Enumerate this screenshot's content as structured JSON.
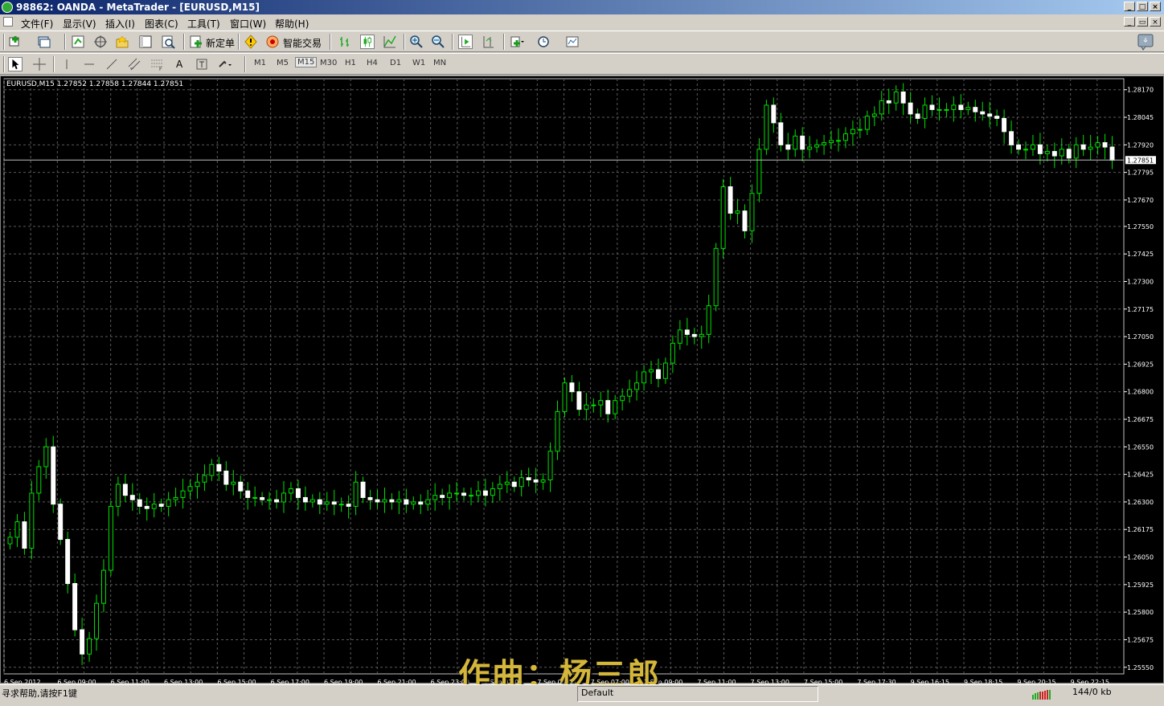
{
  "window": {
    "title": "98862: OANDA - MetaTrader - [EURUSD,M15]",
    "buttons": [
      "_",
      "□",
      "×"
    ],
    "mdi_buttons": [
      "_",
      "▭",
      "×"
    ]
  },
  "menu": [
    "文件(F)",
    "显示(V)",
    "插入(I)",
    "图表(C)",
    "工具(T)",
    "窗口(W)",
    "帮助(H)"
  ],
  "toolbar": {
    "new_order_label": "新定单",
    "smart_trade_label": "智能交易"
  },
  "timeframes": [
    "M1",
    "M5",
    "M15",
    "M30",
    "H1",
    "H4",
    "D1",
    "W1",
    "MN"
  ],
  "selected_timeframe": "M15",
  "chart_header": {
    "symbol": "EURUSD,M15",
    "ohlc": "1.27852 1.27858 1.27844 1.27851"
  },
  "chart_data": {
    "type": "candlestick",
    "symbol": "EURUSD",
    "timeframe": "M15",
    "y_ticks": [
      "1.28170",
      "1.28045",
      "1.27920",
      "1.27795",
      "1.27670",
      "1.27550",
      "1.27425",
      "1.27300",
      "1.27175",
      "1.27050",
      "1.26925",
      "1.26800",
      "1.26675",
      "1.26550",
      "1.26425",
      "1.26300",
      "1.26175",
      "1.26050",
      "1.25925",
      "1.25800",
      "1.25675",
      "1.25550"
    ],
    "ylim": [
      1.2552,
      1.2822
    ],
    "current_price": "1.27851",
    "x_ticks": [
      "6 Sep 2012",
      "6 Sep 09:00",
      "6 Sep 11:00",
      "6 Sep 13:00",
      "6 Sep 15:00",
      "6 Sep 17:00",
      "6 Sep 19:00",
      "6 Sep 21:00",
      "6 Sep 23:00",
      "7 Sep 01:00",
      "7 Sep 03:00",
      "7 Sep 07:00",
      "7 Sep 09:00",
      "7 Sep 11:00",
      "7 Sep 13:00",
      "7 Sep 15:00",
      "7 Sep 17:30",
      "9 Sep 16:15",
      "9 Sep 18:15",
      "9 Sep 20:15",
      "9 Sep 22:15"
    ],
    "closes": [
      1.2614,
      1.2621,
      1.2609,
      1.2634,
      1.2646,
      1.2655,
      1.2629,
      1.2613,
      1.2593,
      1.2572,
      1.2561,
      1.2568,
      1.2584,
      1.2599,
      1.2628,
      1.2638,
      1.2633,
      1.2631,
      1.2628,
      1.2627,
      1.2629,
      1.2628,
      1.2631,
      1.2632,
      1.2635,
      1.2637,
      1.2639,
      1.2642,
      1.2647,
      1.2644,
      1.2638,
      1.2639,
      1.2635,
      1.2632,
      1.2632,
      1.2631,
      1.2631,
      1.263,
      1.2634,
      1.2636,
      1.2632,
      1.263,
      1.2631,
      1.2629,
      1.263,
      1.2629,
      1.2629,
      1.2628,
      1.2639,
      1.2632,
      1.2631,
      1.263,
      1.2631,
      1.263,
      1.2631,
      1.2629,
      1.263,
      1.2629,
      1.2631,
      1.2633,
      1.2632,
      1.2634,
      1.2634,
      1.2633,
      1.2633,
      1.2635,
      1.2633,
      1.2636,
      1.2638,
      1.2639,
      1.2637,
      1.2641,
      1.264,
      1.2639,
      1.264,
      1.2653,
      1.2671,
      1.2684,
      1.268,
      1.2672,
      1.2674,
      1.2674,
      1.2676,
      1.267,
      1.2676,
      1.2678,
      1.2681,
      1.2684,
      1.2689,
      1.269,
      1.2686,
      1.2693,
      1.2702,
      1.2708,
      1.2706,
      1.2705,
      1.2706,
      1.2719,
      1.2745,
      1.2773,
      1.2761,
      1.2762,
      1.2753,
      1.277,
      1.279,
      1.281,
      1.2802,
      1.2792,
      1.279,
      1.2796,
      1.279,
      1.2791,
      1.2792,
      1.2793,
      1.2794,
      1.2794,
      1.2797,
      1.2799,
      1.2799,
      1.2805,
      1.2806,
      1.2812,
      1.2811,
      1.2816,
      1.2811,
      1.2806,
      1.2804,
      1.281,
      1.2808,
      1.2808,
      1.2808,
      1.281,
      1.2808,
      1.2809,
      1.2807,
      1.2806,
      1.2805,
      1.2804,
      1.2798,
      1.2792,
      1.279,
      1.279,
      1.2792,
      1.2788,
      1.2789,
      1.2787,
      1.279,
      1.2786,
      1.2792,
      1.279,
      1.2791,
      1.2793,
      1.2791,
      1.2785
    ]
  },
  "watermark": "作曲：杨三郎",
  "status": {
    "help_text": "寻求帮助,请按F1键",
    "profile": "Default",
    "traffic": "144/0 kb"
  },
  "colors": {
    "background": "#000000",
    "grid": "#5a5a5a",
    "bull_candle": "#000000",
    "bull_outline": "#ffffff",
    "bear_candle": "#ffffff",
    "wick": "#00e000",
    "axis_text": "#ffffff"
  }
}
